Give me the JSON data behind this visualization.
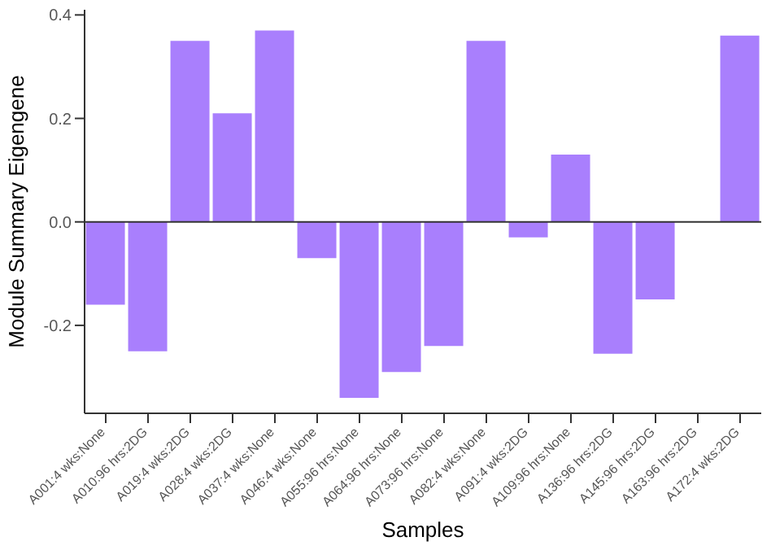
{
  "chart_data": {
    "type": "bar",
    "xlabel": "Samples",
    "ylabel": "Module Summary Eigengene",
    "categories": [
      "A001:4 wks:None",
      "A010:96 hrs:2DG",
      "A019:4 wks:2DG",
      "A028:4 wks:2DG",
      "A037:4 wks:None",
      "A046:4 wks:None",
      "A055:96 hrs:None",
      "A064:96 hrs:None",
      "A073:96 hrs:None",
      "A082:4 wks:None",
      "A091:4 wks:2DG",
      "A109:96 hrs:None",
      "A136:96 hrs:2DG",
      "A145:96 hrs:2DG",
      "A163:96 hrs:2DG",
      "A172:4 wks:2DG"
    ],
    "values": [
      -0.16,
      -0.25,
      0.35,
      0.21,
      0.37,
      -0.07,
      -0.34,
      -0.29,
      -0.24,
      0.35,
      -0.03,
      0.13,
      -0.255,
      -0.15,
      0.0,
      0.36
    ],
    "color": "#a97ffd",
    "ylim": [
      -0.37,
      0.41
    ],
    "yticks": [
      {
        "value": -0.2,
        "label": "-0.2"
      },
      {
        "value": 0,
        "label": "0.0"
      },
      {
        "value": 0.2,
        "label": "0.2"
      },
      {
        "value": 0.4,
        "label": "0.4"
      }
    ],
    "ref_lines": [
      {
        "axis": "y",
        "value": 0,
        "color": "#333333"
      }
    ],
    "grid": false,
    "legend": false
  }
}
